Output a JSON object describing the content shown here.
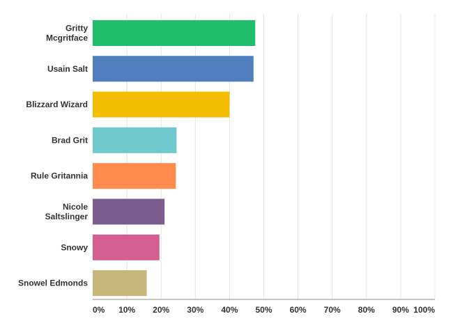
{
  "chart_data": {
    "type": "bar",
    "orientation": "horizontal",
    "categories": [
      [
        "Gritty",
        "Mcgritface"
      ],
      [
        "Usain Salt"
      ],
      [
        "Blizzard Wizard"
      ],
      [
        "Brad Grit"
      ],
      [
        "Rule Gritannia"
      ],
      [
        "Nicole",
        "Saltslinger"
      ],
      [
        "Snowy"
      ],
      [
        "Snowel Edmonds"
      ]
    ],
    "values": [
      47.5,
      47.0,
      40.0,
      24.5,
      24.3,
      21.0,
      19.5,
      15.8
    ],
    "colors": [
      "#1fbf6d",
      "#4f7fbf",
      "#f5bd00",
      "#70c9cc",
      "#ff8b4f",
      "#7c5b8f",
      "#d35e8f",
      "#c7b679"
    ],
    "xlim": [
      0,
      100
    ],
    "xticks": [
      "0%",
      "10%",
      "20%",
      "30%",
      "40%",
      "50%",
      "60%",
      "70%",
      "80%",
      "90%",
      "100%"
    ],
    "xtick_values": [
      0,
      10,
      20,
      30,
      40,
      50,
      60,
      70,
      80,
      90,
      100
    ],
    "grid": true,
    "legend": "none",
    "title": "",
    "xlabel": "",
    "ylabel": ""
  }
}
